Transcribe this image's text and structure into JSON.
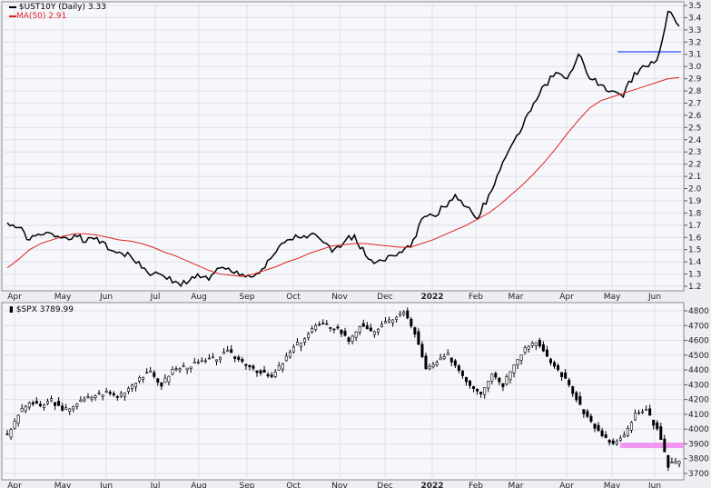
{
  "chart_data": [
    {
      "type": "line",
      "title": "$UST10Y (Daily) 3.33",
      "legend": [
        {
          "label": "$UST10Y (Daily) 3.33",
          "color": "#000000"
        },
        {
          "label": "MA(50) 2.91",
          "color": "#e02020"
        }
      ],
      "x_tick_labels": [
        "Apr",
        "May",
        "Jun",
        "Jul",
        "Aug",
        "Sep",
        "Oct",
        "Nov",
        "Dec",
        "2022",
        "Feb",
        "Mar",
        "Apr",
        "May",
        "Jun"
      ],
      "y_ticks": [
        "1.2",
        "1.3",
        "1.4",
        "1.5",
        "1.6",
        "1.7",
        "1.8",
        "1.9",
        "2.0",
        "2.1",
        "2.2",
        "2.3",
        "2.4",
        "2.5",
        "2.6",
        "2.7",
        "2.8",
        "2.9",
        "3.0",
        "3.1",
        "3.2",
        "3.3",
        "3.4",
        "3.5"
      ],
      "ylim": [
        1.2,
        3.5
      ],
      "series": [
        {
          "name": "$UST10Y",
          "color": "#000000",
          "values": [
            1.72,
            1.68,
            1.58,
            1.62,
            1.63,
            1.6,
            1.62,
            1.56,
            1.6,
            1.5,
            1.48,
            1.45,
            1.35,
            1.3,
            1.28,
            1.24,
            1.22,
            1.3,
            1.25,
            1.35,
            1.32,
            1.3,
            1.28,
            1.35,
            1.48,
            1.58,
            1.6,
            1.62,
            1.58,
            1.48,
            1.55,
            1.62,
            1.45,
            1.4,
            1.45,
            1.48,
            1.52,
            1.75,
            1.78,
            1.85,
            1.95,
            1.85,
            1.75,
            1.95,
            2.15,
            2.35,
            2.5,
            2.7,
            2.85,
            2.95,
            2.9,
            3.1,
            2.9,
            2.85,
            2.8,
            2.75,
            2.95,
            3.0,
            3.05,
            3.45,
            3.33
          ]
        },
        {
          "name": "MA(50)",
          "color": "#e02020",
          "values": [
            1.35,
            1.42,
            1.5,
            1.55,
            1.58,
            1.61,
            1.63,
            1.63,
            1.62,
            1.6,
            1.58,
            1.57,
            1.55,
            1.52,
            1.48,
            1.45,
            1.41,
            1.37,
            1.33,
            1.3,
            1.29,
            1.28,
            1.3,
            1.33,
            1.36,
            1.4,
            1.43,
            1.47,
            1.5,
            1.53,
            1.54,
            1.55,
            1.55,
            1.54,
            1.53,
            1.52,
            1.52,
            1.55,
            1.58,
            1.62,
            1.66,
            1.7,
            1.75,
            1.8,
            1.87,
            1.95,
            2.03,
            2.12,
            2.22,
            2.33,
            2.45,
            2.56,
            2.66,
            2.72,
            2.75,
            2.78,
            2.81,
            2.84,
            2.87,
            2.9,
            2.91
          ]
        }
      ],
      "annotations": [
        {
          "type": "horizontal-line",
          "value": 3.12,
          "color": "#5060ff",
          "from": "May"
        }
      ]
    },
    {
      "type": "ohlc",
      "title": "$SPX 3789.99",
      "x_tick_labels": [
        "Apr",
        "May",
        "Jun",
        "Jul",
        "Aug",
        "Sep",
        "Oct",
        "Nov",
        "Dec",
        "2022",
        "Feb",
        "Mar",
        "Apr",
        "May",
        "Jun"
      ],
      "y_ticks": [
        "3700",
        "3800",
        "3900",
        "4000",
        "4100",
        "4200",
        "4300",
        "4400",
        "4500",
        "4600",
        "4700",
        "4800"
      ],
      "ylim": [
        3650,
        4850
      ],
      "series": [
        {
          "name": "$SPX",
          "color": "#000000",
          "values": [
            3950,
            4100,
            4180,
            4150,
            4200,
            4120,
            4160,
            4200,
            4230,
            4250,
            4220,
            4280,
            4350,
            4380,
            4300,
            4400,
            4420,
            4440,
            4460,
            4480,
            4520,
            4470,
            4430,
            4380,
            4350,
            4450,
            4550,
            4620,
            4700,
            4700,
            4680,
            4600,
            4700,
            4650,
            4700,
            4750,
            4790,
            4650,
            4400,
            4450,
            4500,
            4400,
            4300,
            4250,
            4380,
            4300,
            4450,
            4550,
            4600,
            4480,
            4400,
            4300,
            4150,
            4050,
            3950,
            3900,
            3950,
            4100,
            4120,
            4000,
            3750,
            3790
          ]
        }
      ],
      "annotations": [
        {
          "type": "horizontal-band",
          "value": 3890,
          "color": "#f080f0",
          "from": "May"
        }
      ]
    }
  ]
}
